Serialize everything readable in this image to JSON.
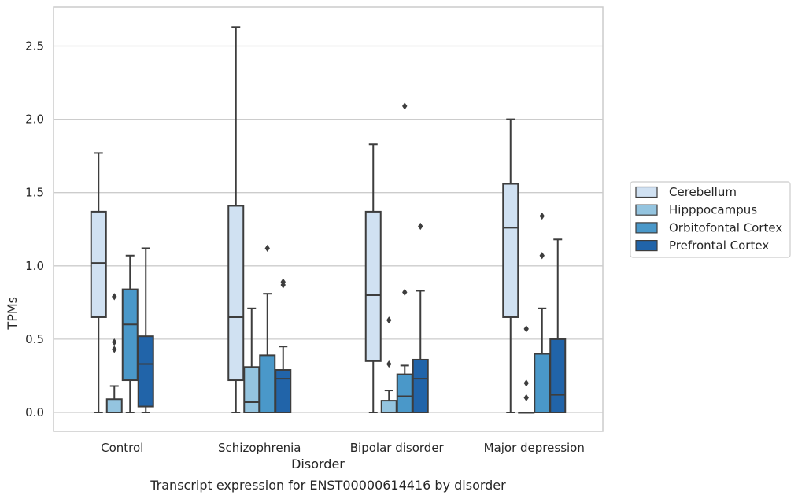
{
  "chart_data": {
    "type": "box",
    "title": "",
    "caption": "Transcript expression for ENST00000614416 by disorder",
    "xlabel": "Disorder",
    "ylabel": "TPMs",
    "ylim": [
      -0.13,
      2.76
    ],
    "yticks": [
      0.0,
      0.5,
      1.0,
      1.5,
      2.0,
      2.5
    ],
    "ytick_labels": [
      "0.0",
      "0.5",
      "1.0",
      "1.5",
      "2.0",
      "2.5"
    ],
    "grid": true,
    "legend_position": "right",
    "categories": [
      "Control",
      "Schizophrenia",
      "Bipolar disorder",
      "Major depression"
    ],
    "series": [
      {
        "name": "Cerebellum",
        "color": "#d0e1f2",
        "boxes": [
          {
            "whislo": 0.0,
            "q1": 0.65,
            "med": 1.02,
            "q3": 1.37,
            "whishi": 1.77,
            "fliers": []
          },
          {
            "whislo": 0.0,
            "q1": 0.22,
            "med": 0.65,
            "q3": 1.41,
            "whishi": 2.63,
            "fliers": []
          },
          {
            "whislo": 0.0,
            "q1": 0.35,
            "med": 0.8,
            "q3": 1.37,
            "whishi": 1.83,
            "fliers": []
          },
          {
            "whislo": 0.0,
            "q1": 0.65,
            "med": 1.26,
            "q3": 1.56,
            "whishi": 2.0,
            "fliers": []
          }
        ]
      },
      {
        "name": "Hipppocampus",
        "color": "#94c4df",
        "boxes": [
          {
            "whislo": 0.0,
            "q1": 0.0,
            "med": 0.0,
            "q3": 0.09,
            "whishi": 0.18,
            "fliers": [
              0.43,
              0.48,
              0.79
            ]
          },
          {
            "whislo": 0.0,
            "q1": 0.0,
            "med": 0.07,
            "q3": 0.31,
            "whishi": 0.71,
            "fliers": []
          },
          {
            "whislo": 0.0,
            "q1": 0.0,
            "med": 0.0,
            "q3": 0.08,
            "whishi": 0.15,
            "fliers": [
              0.33,
              0.63
            ]
          },
          {
            "whislo": 0.0,
            "q1": 0.0,
            "med": 0.0,
            "q3": 0.0,
            "whishi": 0.0,
            "fliers": [
              0.1,
              0.2,
              0.57
            ]
          }
        ]
      },
      {
        "name": "Orbitofontal Cortex",
        "color": "#4a98c9",
        "boxes": [
          {
            "whislo": 0.0,
            "q1": 0.22,
            "med": 0.6,
            "q3": 0.84,
            "whishi": 1.07,
            "fliers": []
          },
          {
            "whislo": 0.0,
            "q1": 0.0,
            "med": 0.0,
            "q3": 0.39,
            "whishi": 0.81,
            "fliers": [
              1.12
            ]
          },
          {
            "whislo": 0.0,
            "q1": 0.0,
            "med": 0.11,
            "q3": 0.26,
            "whishi": 0.32,
            "fliers": [
              0.82,
              2.09
            ]
          },
          {
            "whislo": 0.0,
            "q1": 0.0,
            "med": 0.0,
            "q3": 0.4,
            "whishi": 0.71,
            "fliers": [
              1.07,
              1.34
            ]
          }
        ]
      },
      {
        "name": "Prefrontal Cortex",
        "color": "#2164a9",
        "boxes": [
          {
            "whislo": 0.0,
            "q1": 0.04,
            "med": 0.33,
            "q3": 0.52,
            "whishi": 1.12,
            "fliers": []
          },
          {
            "whislo": 0.0,
            "q1": 0.0,
            "med": 0.23,
            "q3": 0.29,
            "whishi": 0.45,
            "fliers": [
              0.87,
              0.89
            ]
          },
          {
            "whislo": 0.0,
            "q1": 0.0,
            "med": 0.23,
            "q3": 0.36,
            "whishi": 0.83,
            "fliers": [
              1.27
            ]
          },
          {
            "whislo": 0.0,
            "q1": 0.0,
            "med": 0.12,
            "q3": 0.5,
            "whishi": 1.18,
            "fliers": []
          }
        ]
      }
    ],
    "colors": {
      "grid": "#cccccc",
      "frame": "#cccccc",
      "line": "#3d3d3d",
      "text": "#262626"
    }
  }
}
